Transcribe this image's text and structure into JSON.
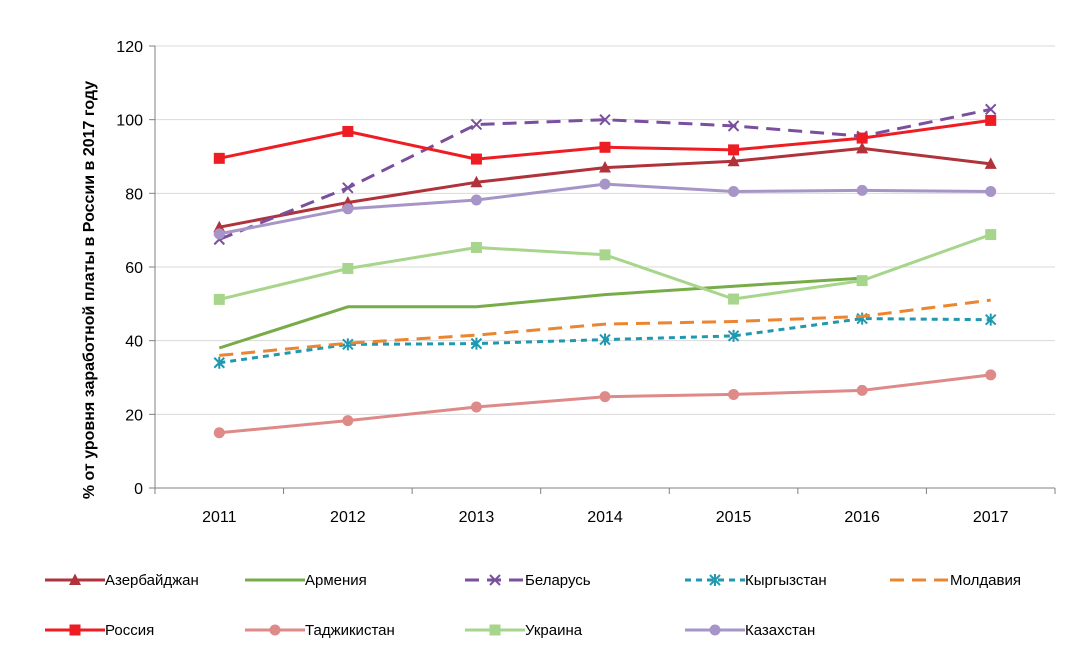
{
  "chart_data": {
    "type": "line",
    "title": "",
    "xlabel": "",
    "ylabel": "% от уровня заработной платы в России в 2017 году",
    "categories": [
      "2011",
      "2012",
      "2013",
      "2014",
      "2015",
      "2016",
      "2017"
    ],
    "ylim": [
      0,
      120
    ],
    "yticks": [
      0,
      20,
      40,
      60,
      80,
      100,
      120
    ],
    "grid": "horizontal",
    "legend_position": "bottom",
    "series": [
      {
        "name": "Азербайджан",
        "color": "#b0323a",
        "dash": "solid",
        "marker": "triangle",
        "values": [
          70.8,
          77.5,
          83,
          87,
          88.7,
          92.2,
          88
        ]
      },
      {
        "name": "Армения",
        "color": "#77ac48",
        "dash": "solid",
        "marker": "none",
        "values": [
          38,
          49.2,
          49.2,
          52.5,
          54.8,
          57,
          null
        ]
      },
      {
        "name": "Беларусь",
        "color": "#7a4f9e",
        "dash": "longdash",
        "marker": "x",
        "values": [
          67.5,
          81.5,
          98.7,
          100,
          98.3,
          95.5,
          102.8
        ]
      },
      {
        "name": "Кыргызстан",
        "color": "#1f98b0",
        "dash": "shortdash",
        "marker": "star",
        "values": [
          34,
          39,
          39.2,
          40.3,
          41.3,
          46,
          45.7
        ]
      },
      {
        "name": "Молдавия",
        "color": "#ec8530",
        "dash": "longdash",
        "marker": "none",
        "values": [
          36,
          39.3,
          41.5,
          44.5,
          45.2,
          46.6,
          51
        ]
      },
      {
        "name": "Россия",
        "color": "#ee1d23",
        "dash": "solid",
        "marker": "square",
        "values": [
          89.5,
          96.8,
          89.3,
          92.5,
          91.8,
          95,
          99.8
        ]
      },
      {
        "name": "Таджикистан",
        "color": "#de8a88",
        "dash": "solid",
        "marker": "circle",
        "values": [
          15,
          18.3,
          22,
          24.8,
          25.4,
          26.5,
          30.7
        ]
      },
      {
        "name": "Украина",
        "color": "#a8d58c",
        "dash": "solid",
        "marker": "square",
        "values": [
          51.2,
          59.6,
          65.3,
          63.3,
          51.3,
          56.3,
          68.8
        ]
      },
      {
        "name": "Казахстан",
        "color": "#a795c8",
        "dash": "solid",
        "marker": "circle",
        "values": [
          69,
          75.8,
          78.2,
          82.5,
          80.5,
          80.8,
          80.5
        ]
      }
    ]
  }
}
